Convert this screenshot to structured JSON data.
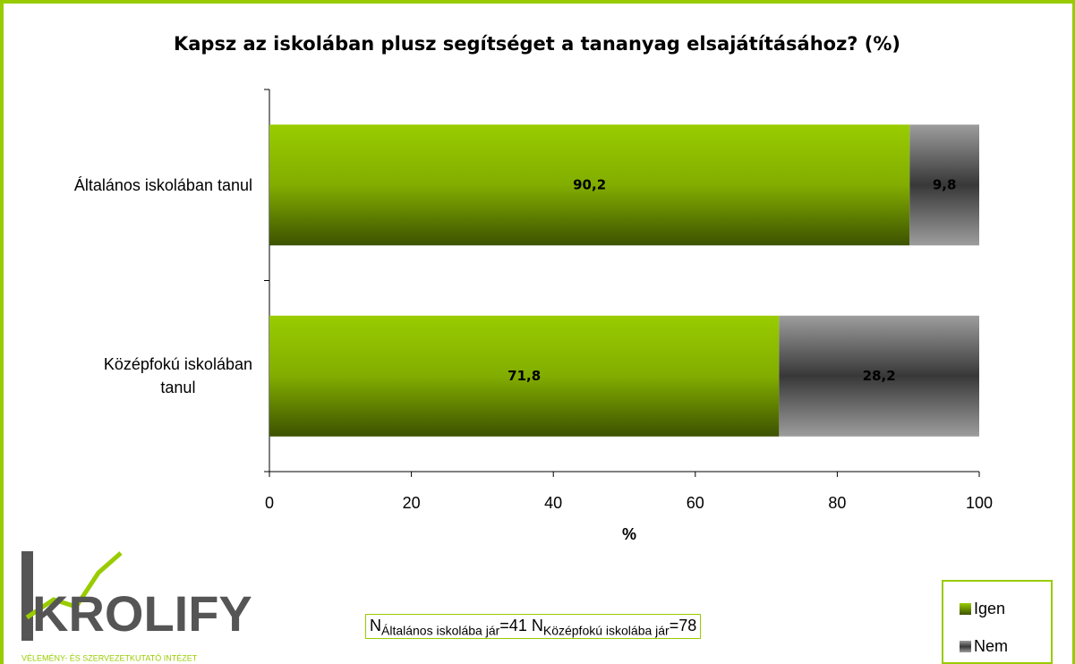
{
  "chart_data": {
    "type": "stacked-bar-horizontal",
    "title": "Kapsz az iskolában plusz segítséget a tananyag elsajátításához? (%)",
    "categories": [
      "Általános iskolában tanul",
      "Középfokú iskolában\ntanul"
    ],
    "series": [
      {
        "name": "Igen",
        "color": "#99cc00",
        "values": [
          90.2,
          71.8
        ],
        "value_labels": [
          "90,2",
          "71,8"
        ]
      },
      {
        "name": "Nem",
        "color": "#8c8c8c",
        "values": [
          9.8,
          28.2
        ],
        "value_labels": [
          "9,8",
          "28,2"
        ]
      }
    ],
    "xlim": [
      0,
      100
    ],
    "xticks": [
      0,
      20,
      40,
      60,
      80,
      100
    ],
    "x_label": "%",
    "legend": "bottom-right",
    "annotation": [
      {
        "base": "N",
        "sub": "Általános iskolába jár",
        "rest": "=41"
      },
      {
        "base": "N",
        "sub": "Középfokú iskolába jár",
        "rest": "=78"
      }
    ]
  },
  "logo": {
    "name": "KROLIFY",
    "tagline": "VÉLEMÉNY- ÉS SZERVEZETKUTATÓ INTÉZET"
  }
}
